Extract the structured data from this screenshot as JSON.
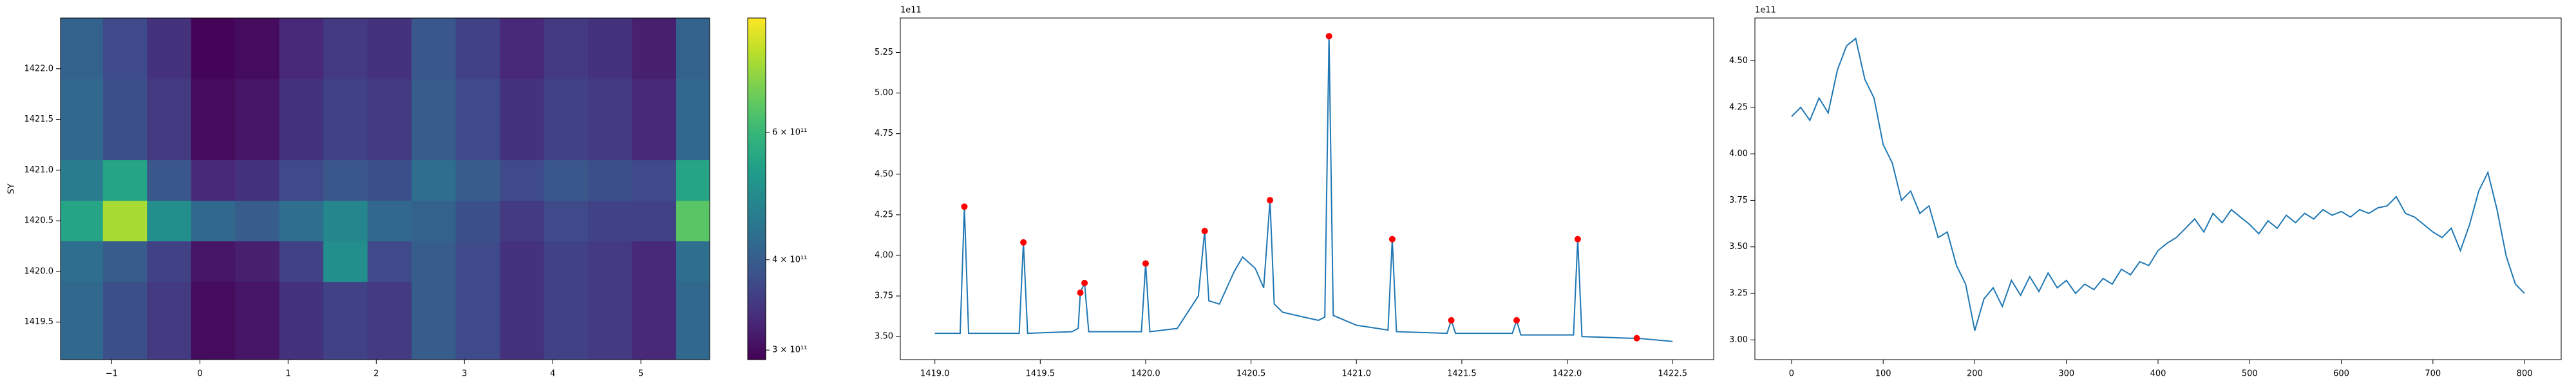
{
  "chart_data": [
    {
      "type": "heatmap",
      "ylabel": "SY",
      "xlim": [
        -1.58,
        5.78
      ],
      "ylim": [
        1419.13,
        1422.5
      ],
      "xticks": [
        {
          "value": -1,
          "label": "−1"
        },
        0,
        1,
        2,
        3,
        4,
        5
      ],
      "yticks": [
        {
          "value": 1419.5,
          "label": "1419.5"
        },
        {
          "value": 1420.0,
          "label": "1420.0"
        },
        {
          "value": 1420.5,
          "label": "1420.5"
        },
        {
          "value": 1421.0,
          "label": "1421.0"
        },
        {
          "value": 1421.5,
          "label": "1421.5"
        },
        {
          "value": 1422.0,
          "label": "1422.0"
        }
      ],
      "x_edges": [
        -1.58,
        -1.1,
        -0.6,
        -0.1,
        0.4,
        0.9,
        1.4,
        1.9,
        2.4,
        2.9,
        3.4,
        3.9,
        4.4,
        4.9,
        5.4,
        5.78
      ],
      "y_edges": [
        1419.13,
        1419.5,
        1419.9,
        1420.3,
        1420.7,
        1421.1,
        1421.5,
        1421.9,
        1422.5
      ],
      "z": [
        [
          420000000000.0,
          380000000000.0,
          350000000000.0,
          300000000000.0,
          310000000000.0,
          340000000000.0,
          360000000000.0,
          350000000000.0,
          400000000000.0,
          370000000000.0,
          340000000000.0,
          360000000000.0,
          350000000000.0,
          330000000000.0,
          420000000000.0
        ],
        [
          420000000000.0,
          380000000000.0,
          350000000000.0,
          300000000000.0,
          310000000000.0,
          340000000000.0,
          360000000000.0,
          350000000000.0,
          400000000000.0,
          370000000000.0,
          340000000000.0,
          360000000000.0,
          350000000000.0,
          330000000000.0,
          420000000000.0
        ],
        [
          430000000000.0,
          400000000000.0,
          360000000000.0,
          310000000000.0,
          320000000000.0,
          360000000000.0,
          500000000000.0,
          370000000000.0,
          400000000000.0,
          370000000000.0,
          340000000000.0,
          360000000000.0,
          350000000000.0,
          330000000000.0,
          430000000000.0
        ],
        [
          550000000000.0,
          750000000000.0,
          500000000000.0,
          420000000000.0,
          400000000000.0,
          430000000000.0,
          480000000000.0,
          420000000000.0,
          410000000000.0,
          380000000000.0,
          350000000000.0,
          370000000000.0,
          360000000000.0,
          360000000000.0,
          650000000000.0
        ],
        [
          460000000000.0,
          550000000000.0,
          390000000000.0,
          330000000000.0,
          340000000000.0,
          370000000000.0,
          390000000000.0,
          380000000000.0,
          430000000000.0,
          400000000000.0,
          370000000000.0,
          390000000000.0,
          380000000000.0,
          370000000000.0,
          550000000000.0
        ],
        [
          420000000000.0,
          380000000000.0,
          350000000000.0,
          300000000000.0,
          310000000000.0,
          340000000000.0,
          360000000000.0,
          350000000000.0,
          400000000000.0,
          370000000000.0,
          340000000000.0,
          360000000000.0,
          350000000000.0,
          330000000000.0,
          420000000000.0
        ],
        [
          420000000000.0,
          380000000000.0,
          350000000000.0,
          300000000000.0,
          310000000000.0,
          340000000000.0,
          360000000000.0,
          350000000000.0,
          400000000000.0,
          370000000000.0,
          340000000000.0,
          360000000000.0,
          350000000000.0,
          330000000000.0,
          420000000000.0
        ],
        [
          410000000000.0,
          370000000000.0,
          340000000000.0,
          295000000000.0,
          300000000000.0,
          330000000000.0,
          350000000000.0,
          340000000000.0,
          390000000000.0,
          360000000000.0,
          330000000000.0,
          350000000000.0,
          340000000000.0,
          320000000000.0,
          410000000000.0
        ]
      ],
      "colormap": "viridis",
      "cscale": "log",
      "clim": [
        291000000000.0,
        864000000000.0
      ],
      "cticks": [
        {
          "value": 300000000000.0,
          "label": "3 × 10¹¹"
        },
        {
          "value": 400000000000.0,
          "label": "4 × 10¹¹"
        },
        {
          "value": 600000000000.0,
          "label": "6 × 10¹¹"
        }
      ]
    },
    {
      "type": "line",
      "offset_text": "1e11",
      "xlim": [
        1418.836,
        1422.695
      ],
      "ylim": [
        3.358,
        5.462
      ],
      "xticks": [
        {
          "value": 1419.0,
          "label": "1419.0"
        },
        {
          "value": 1419.5,
          "label": "1419.5"
        },
        {
          "value": 1420.0,
          "label": "1420.0"
        },
        {
          "value": 1420.5,
          "label": "1420.5"
        },
        {
          "value": 1421.0,
          "label": "1421.0"
        },
        {
          "value": 1421.5,
          "label": "1421.5"
        },
        {
          "value": 1422.0,
          "label": "1422.0"
        },
        {
          "value": 1422.5,
          "label": "1422.5"
        }
      ],
      "yticks": [
        {
          "value": 3.5,
          "label": "3.50"
        },
        {
          "value": 3.75,
          "label": "3.75"
        },
        {
          "value": 4.0,
          "label": "4.00"
        },
        {
          "value": 4.25,
          "label": "4.25"
        },
        {
          "value": 4.5,
          "label": "4.50"
        },
        {
          "value": 4.75,
          "label": "4.75"
        },
        {
          "value": 5.0,
          "label": "5.00"
        },
        {
          "value": 5.25,
          "label": "5.25"
        }
      ],
      "series": [
        {
          "color": "#1f77b4",
          "x": [
            1419.0,
            1419.12,
            1419.14,
            1419.16,
            1419.4,
            1419.42,
            1419.44,
            1419.65,
            1419.68,
            1419.69,
            1419.71,
            1419.73,
            1419.98,
            1420.0,
            1420.02,
            1420.15,
            1420.2,
            1420.25,
            1420.28,
            1420.3,
            1420.35,
            1420.42,
            1420.46,
            1420.52,
            1420.56,
            1420.59,
            1420.61,
            1420.65,
            1420.75,
            1420.82,
            1420.85,
            1420.87,
            1420.89,
            1421.0,
            1421.1,
            1421.15,
            1421.17,
            1421.19,
            1421.43,
            1421.45,
            1421.47,
            1421.74,
            1421.76,
            1421.78,
            1422.03,
            1422.05,
            1422.07,
            1422.3,
            1422.33,
            1422.5
          ],
          "values": [
            3.52,
            3.52,
            4.3,
            3.52,
            3.52,
            4.08,
            3.52,
            3.53,
            3.55,
            3.77,
            3.83,
            3.53,
            3.53,
            3.95,
            3.53,
            3.55,
            3.65,
            3.75,
            4.15,
            3.72,
            3.7,
            3.9,
            3.99,
            3.92,
            3.8,
            4.34,
            3.7,
            3.65,
            3.62,
            3.6,
            3.62,
            5.35,
            3.63,
            3.57,
            3.55,
            3.54,
            4.1,
            3.53,
            3.52,
            3.6,
            3.52,
            3.52,
            3.6,
            3.51,
            3.51,
            4.1,
            3.5,
            3.49,
            3.49,
            3.47
          ]
        },
        {
          "color": "red",
          "marker": "circle",
          "x": [
            1419.14,
            1419.42,
            1419.69,
            1419.71,
            1420.0,
            1420.28,
            1420.59,
            1420.87,
            1421.17,
            1421.45,
            1421.76,
            1422.05,
            1422.33
          ],
          "values": [
            4.3,
            4.08,
            3.77,
            3.83,
            3.95,
            4.15,
            4.34,
            5.35,
            4.1,
            3.6,
            3.6,
            4.1,
            3.49
          ]
        }
      ]
    },
    {
      "type": "line",
      "offset_text": "1e11",
      "xlim": [
        -40,
        840
      ],
      "ylim": [
        2.894,
        4.73
      ],
      "xticks": [
        0,
        100,
        200,
        300,
        400,
        500,
        600,
        700,
        800
      ],
      "yticks": [
        {
          "value": 3.0,
          "label": "3.00"
        },
        {
          "value": 3.25,
          "label": "3.25"
        },
        {
          "value": 3.5,
          "label": "3.50"
        },
        {
          "value": 3.75,
          "label": "3.75"
        },
        {
          "value": 4.0,
          "label": "4.00"
        },
        {
          "value": 4.25,
          "label": "4.25"
        },
        {
          "value": 4.5,
          "label": "4.50"
        }
      ],
      "series": [
        {
          "color": "#1f77b4",
          "x": [
            0,
            10,
            20,
            30,
            40,
            50,
            60,
            70,
            80,
            90,
            100,
            110,
            120,
            130,
            140,
            150,
            160,
            170,
            180,
            190,
            200,
            210,
            220,
            230,
            240,
            250,
            260,
            270,
            280,
            290,
            300,
            310,
            320,
            330,
            340,
            350,
            360,
            370,
            380,
            390,
            400,
            410,
            420,
            430,
            440,
            450,
            460,
            470,
            480,
            490,
            500,
            510,
            520,
            530,
            540,
            550,
            560,
            570,
            580,
            590,
            600,
            610,
            620,
            630,
            640,
            650,
            660,
            670,
            680,
            690,
            700,
            710,
            720,
            730,
            740,
            750,
            760,
            770,
            780,
            790,
            800
          ],
          "values": [
            4.2,
            4.25,
            4.18,
            4.3,
            4.22,
            4.45,
            4.58,
            4.62,
            4.4,
            4.3,
            4.05,
            3.95,
            3.75,
            3.8,
            3.68,
            3.72,
            3.55,
            3.58,
            3.4,
            3.3,
            3.05,
            3.22,
            3.28,
            3.18,
            3.32,
            3.24,
            3.34,
            3.26,
            3.36,
            3.28,
            3.32,
            3.25,
            3.3,
            3.27,
            3.33,
            3.3,
            3.38,
            3.35,
            3.42,
            3.4,
            3.48,
            3.52,
            3.55,
            3.6,
            3.65,
            3.58,
            3.68,
            3.63,
            3.7,
            3.66,
            3.62,
            3.57,
            3.64,
            3.6,
            3.67,
            3.63,
            3.68,
            3.65,
            3.7,
            3.67,
            3.69,
            3.66,
            3.7,
            3.68,
            3.71,
            3.72,
            3.77,
            3.68,
            3.66,
            3.62,
            3.58,
            3.55,
            3.6,
            3.48,
            3.62,
            3.8,
            3.9,
            3.7,
            3.45,
            3.3,
            3.25
          ]
        }
      ]
    }
  ]
}
